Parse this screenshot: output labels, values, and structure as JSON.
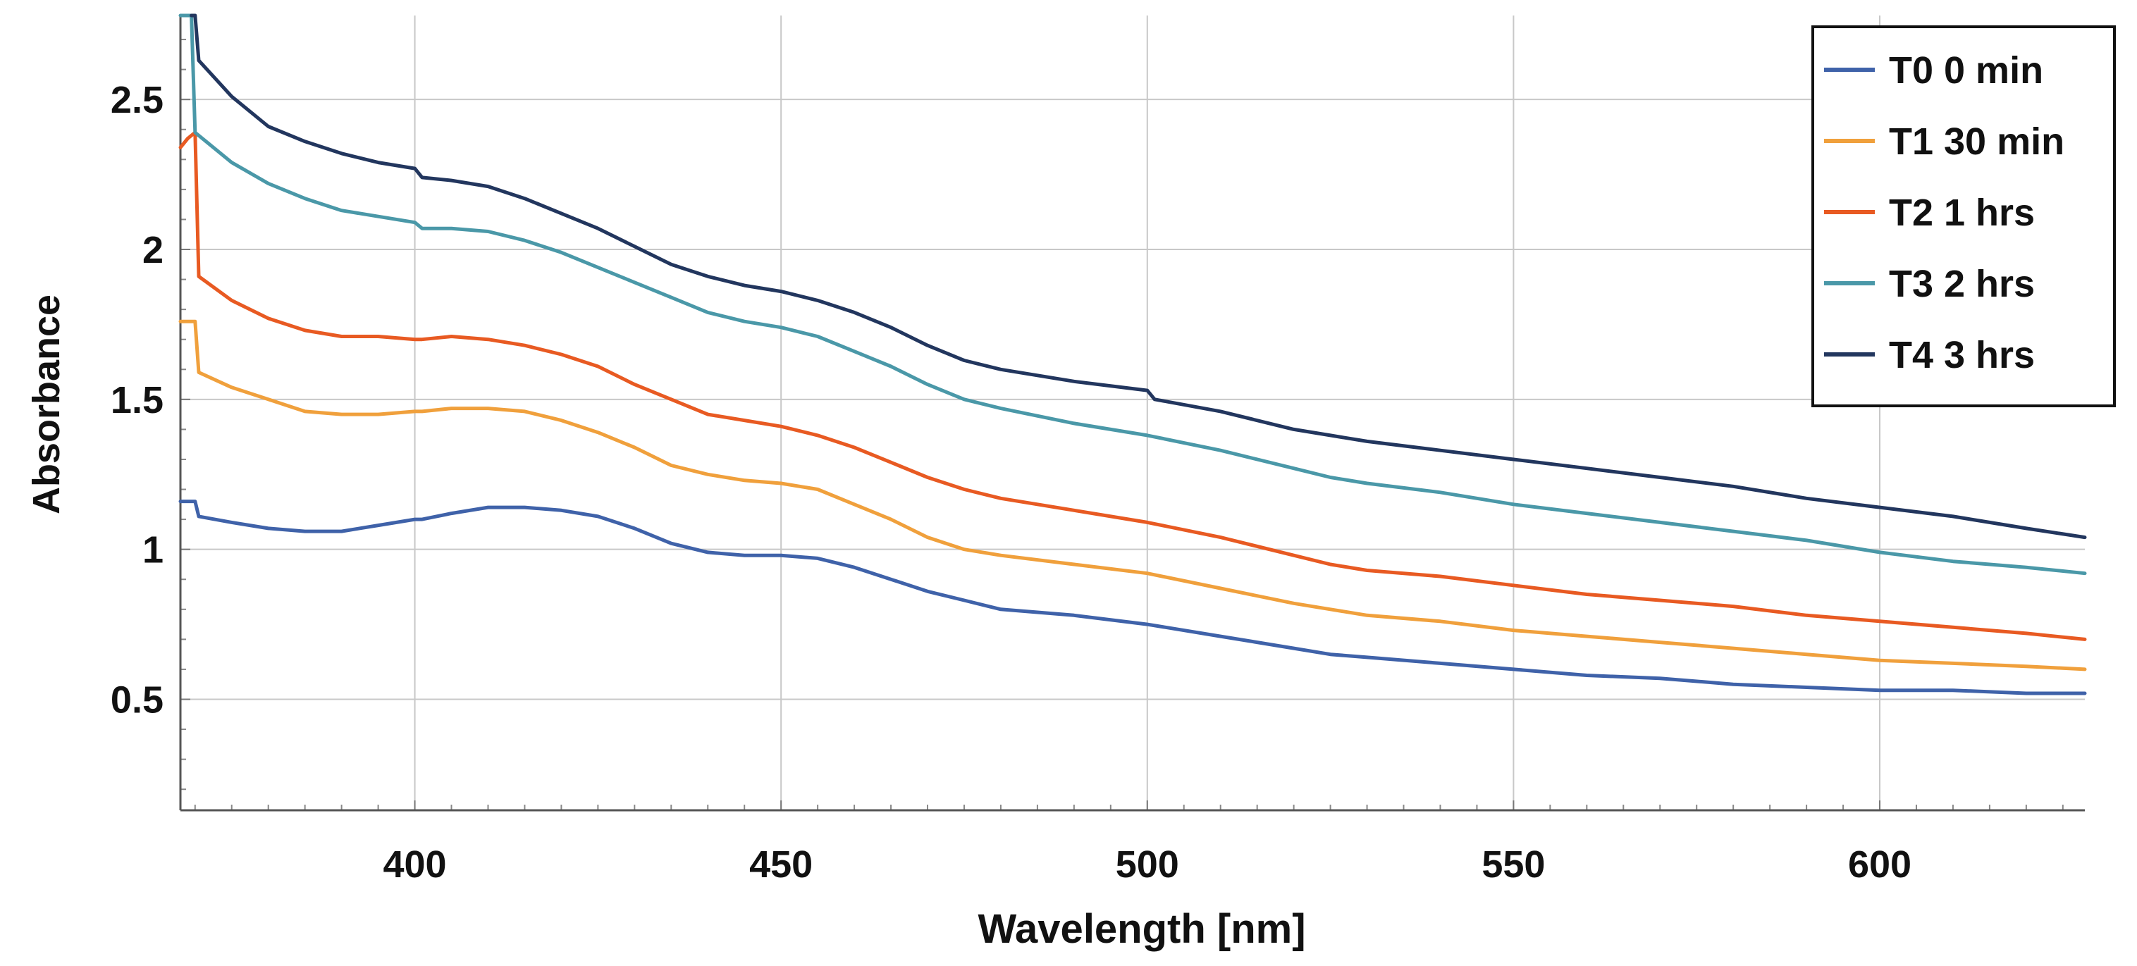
{
  "chart_data": {
    "type": "line",
    "title": "",
    "xlabel": "Wavelength [nm]",
    "ylabel": "Absorbance",
    "xlim": [
      368,
      628
    ],
    "ylim": [
      0.13,
      2.78
    ],
    "x_ticks": [
      400,
      450,
      500,
      550,
      600
    ],
    "x_tick_labels": [
      "400",
      "450",
      "500",
      "550",
      "600"
    ],
    "y_ticks": [
      0.5,
      1,
      1.5,
      2,
      2.5
    ],
    "y_tick_labels": [
      "0.5",
      "1",
      "1.5",
      "2",
      "2.5"
    ],
    "grid": true,
    "legend_position": "top-right",
    "series": [
      {
        "name": "T0 0 min",
        "color": "#3f62a9",
        "x": [
          368,
          370,
          370.5,
          375,
          380,
          385,
          390,
          395,
          400,
          401,
          405,
          410,
          415,
          420,
          425,
          430,
          435,
          440,
          445,
          450,
          455,
          460,
          465,
          470,
          475,
          480,
          490,
          500,
          510,
          520,
          525,
          530,
          540,
          550,
          560,
          570,
          580,
          590,
          600,
          610,
          620,
          628
        ],
        "values": [
          1.16,
          1.16,
          1.11,
          1.09,
          1.07,
          1.06,
          1.06,
          1.08,
          1.1,
          1.1,
          1.12,
          1.14,
          1.14,
          1.13,
          1.11,
          1.07,
          1.02,
          0.99,
          0.98,
          0.98,
          0.97,
          0.94,
          0.9,
          0.86,
          0.83,
          0.8,
          0.78,
          0.75,
          0.71,
          0.67,
          0.65,
          0.64,
          0.62,
          0.6,
          0.58,
          0.57,
          0.55,
          0.54,
          0.53,
          0.53,
          0.52,
          0.52
        ]
      },
      {
        "name": "T1 30 min",
        "color": "#f0a03c",
        "x": [
          368,
          370,
          370.5,
          375,
          380,
          385,
          390,
          395,
          400,
          401,
          405,
          410,
          415,
          420,
          425,
          430,
          435,
          440,
          445,
          450,
          455,
          460,
          465,
          470,
          475,
          480,
          490,
          500,
          510,
          520,
          525,
          530,
          540,
          550,
          560,
          570,
          580,
          590,
          600,
          610,
          620,
          628
        ],
        "values": [
          1.76,
          1.76,
          1.59,
          1.54,
          1.5,
          1.46,
          1.45,
          1.45,
          1.46,
          1.46,
          1.47,
          1.47,
          1.46,
          1.43,
          1.39,
          1.34,
          1.28,
          1.25,
          1.23,
          1.22,
          1.2,
          1.15,
          1.1,
          1.04,
          1.0,
          0.98,
          0.95,
          0.92,
          0.87,
          0.82,
          0.8,
          0.78,
          0.76,
          0.73,
          0.71,
          0.69,
          0.67,
          0.65,
          0.63,
          0.62,
          0.61,
          0.6
        ]
      },
      {
        "name": "T2 1 hrs",
        "color": "#e85a22",
        "x": [
          368,
          369,
          370,
          370.5,
          375,
          380,
          385,
          390,
          395,
          400,
          401,
          405,
          410,
          415,
          420,
          425,
          430,
          435,
          440,
          445,
          450,
          455,
          460,
          465,
          470,
          475,
          480,
          490,
          500,
          510,
          520,
          525,
          530,
          540,
          550,
          560,
          570,
          580,
          590,
          600,
          610,
          620,
          628
        ],
        "values": [
          2.34,
          2.37,
          2.39,
          1.91,
          1.83,
          1.77,
          1.73,
          1.71,
          1.71,
          1.7,
          1.7,
          1.71,
          1.7,
          1.68,
          1.65,
          1.61,
          1.55,
          1.5,
          1.45,
          1.43,
          1.41,
          1.38,
          1.34,
          1.29,
          1.24,
          1.2,
          1.17,
          1.13,
          1.09,
          1.04,
          0.98,
          0.95,
          0.93,
          0.91,
          0.88,
          0.85,
          0.83,
          0.81,
          0.78,
          0.76,
          0.74,
          0.72,
          0.7
        ]
      },
      {
        "name": "T3 2 hrs",
        "color": "#4a98a8",
        "x": [
          368,
          369.5,
          370,
          370.5,
          375,
          380,
          385,
          390,
          395,
          400,
          401,
          405,
          410,
          415,
          420,
          425,
          430,
          435,
          440,
          445,
          450,
          455,
          460,
          465,
          470,
          475,
          480,
          490,
          500,
          510,
          520,
          525,
          530,
          540,
          550,
          560,
          570,
          580,
          590,
          600,
          610,
          620,
          628
        ],
        "values": [
          2.78,
          2.78,
          2.39,
          2.38,
          2.29,
          2.22,
          2.17,
          2.13,
          2.11,
          2.09,
          2.07,
          2.07,
          2.06,
          2.03,
          1.99,
          1.94,
          1.89,
          1.84,
          1.79,
          1.76,
          1.74,
          1.71,
          1.66,
          1.61,
          1.55,
          1.5,
          1.47,
          1.42,
          1.38,
          1.33,
          1.27,
          1.24,
          1.22,
          1.19,
          1.15,
          1.12,
          1.09,
          1.06,
          1.03,
          0.99,
          0.96,
          0.94,
          0.92
        ]
      },
      {
        "name": "T4 3 hrs",
        "color": "#22365e",
        "x": [
          369.5,
          370,
          370.5,
          375,
          380,
          385,
          390,
          395,
          400,
          401,
          405,
          410,
          415,
          420,
          425,
          430,
          435,
          440,
          445,
          450,
          455,
          460,
          465,
          470,
          475,
          480,
          490,
          500,
          501,
          510,
          520,
          525,
          530,
          540,
          550,
          560,
          570,
          580,
          590,
          600,
          610,
          620,
          628
        ],
        "values": [
          2.78,
          2.78,
          2.63,
          2.51,
          2.41,
          2.36,
          2.32,
          2.29,
          2.27,
          2.24,
          2.23,
          2.21,
          2.17,
          2.12,
          2.07,
          2.01,
          1.95,
          1.91,
          1.88,
          1.86,
          1.83,
          1.79,
          1.74,
          1.68,
          1.63,
          1.6,
          1.56,
          1.53,
          1.5,
          1.46,
          1.4,
          1.38,
          1.36,
          1.33,
          1.3,
          1.27,
          1.24,
          1.21,
          1.17,
          1.14,
          1.11,
          1.07,
          1.04
        ]
      }
    ]
  }
}
